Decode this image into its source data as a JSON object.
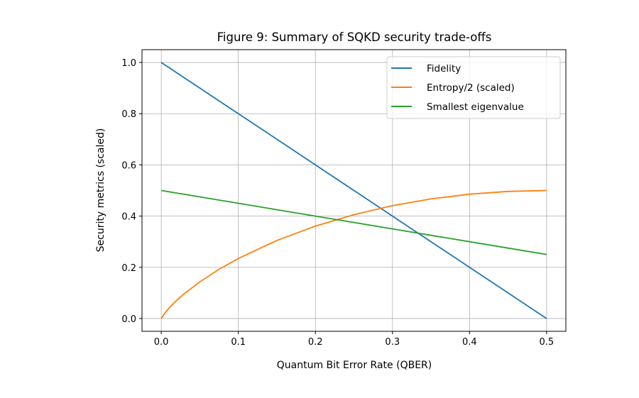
{
  "chart_data": {
    "type": "line",
    "title": "Figure 9: Summary of SQKD security trade-offs",
    "xlabel": "Quantum Bit Error Rate (QBER)",
    "ylabel": "Security metrics (scaled)",
    "xlim": [
      -0.025,
      0.525
    ],
    "ylim": [
      -0.05,
      1.05
    ],
    "xticks": [
      0.0,
      0.1,
      0.2,
      0.3,
      0.4,
      0.5
    ],
    "xtick_labels": [
      "0.0",
      "0.1",
      "0.2",
      "0.3",
      "0.4",
      "0.5"
    ],
    "yticks": [
      0.0,
      0.2,
      0.4,
      0.6,
      0.8,
      1.0
    ],
    "ytick_labels": [
      "0.0",
      "0.2",
      "0.4",
      "0.6",
      "0.8",
      "1.0"
    ],
    "grid": true,
    "legend_placement": "upper-right",
    "x": [
      0,
      0.005,
      0.01,
      0.02,
      0.03,
      0.05,
      0.075,
      0.1,
      0.15,
      0.2,
      0.25,
      0.3,
      0.35,
      0.4,
      0.45,
      0.5
    ],
    "series": [
      {
        "name": "Fidelity",
        "color": "#1f77b4",
        "values": [
          1,
          0.99,
          0.98,
          0.96,
          0.94,
          0.9,
          0.85,
          0.8,
          0.7,
          0.6,
          0.5,
          0.4,
          0.3,
          0.2,
          0.1,
          0
        ]
      },
      {
        "name": "Entropy/2 (scaled)",
        "color": "#ff7f0e",
        "values": [
          0,
          0.0227,
          0.0404,
          0.0707,
          0.0972,
          0.1432,
          0.1922,
          0.2345,
          0.3049,
          0.361,
          0.4056,
          0.4406,
          0.467,
          0.4855,
          0.4964,
          0.5
        ]
      },
      {
        "name": "Smallest eigenvalue",
        "color": "#2ca02c",
        "values": [
          0.5,
          0.4975,
          0.495,
          0.49,
          0.485,
          0.475,
          0.4625,
          0.45,
          0.425,
          0.4,
          0.375,
          0.35,
          0.325,
          0.3,
          0.275,
          0.25
        ]
      }
    ]
  }
}
